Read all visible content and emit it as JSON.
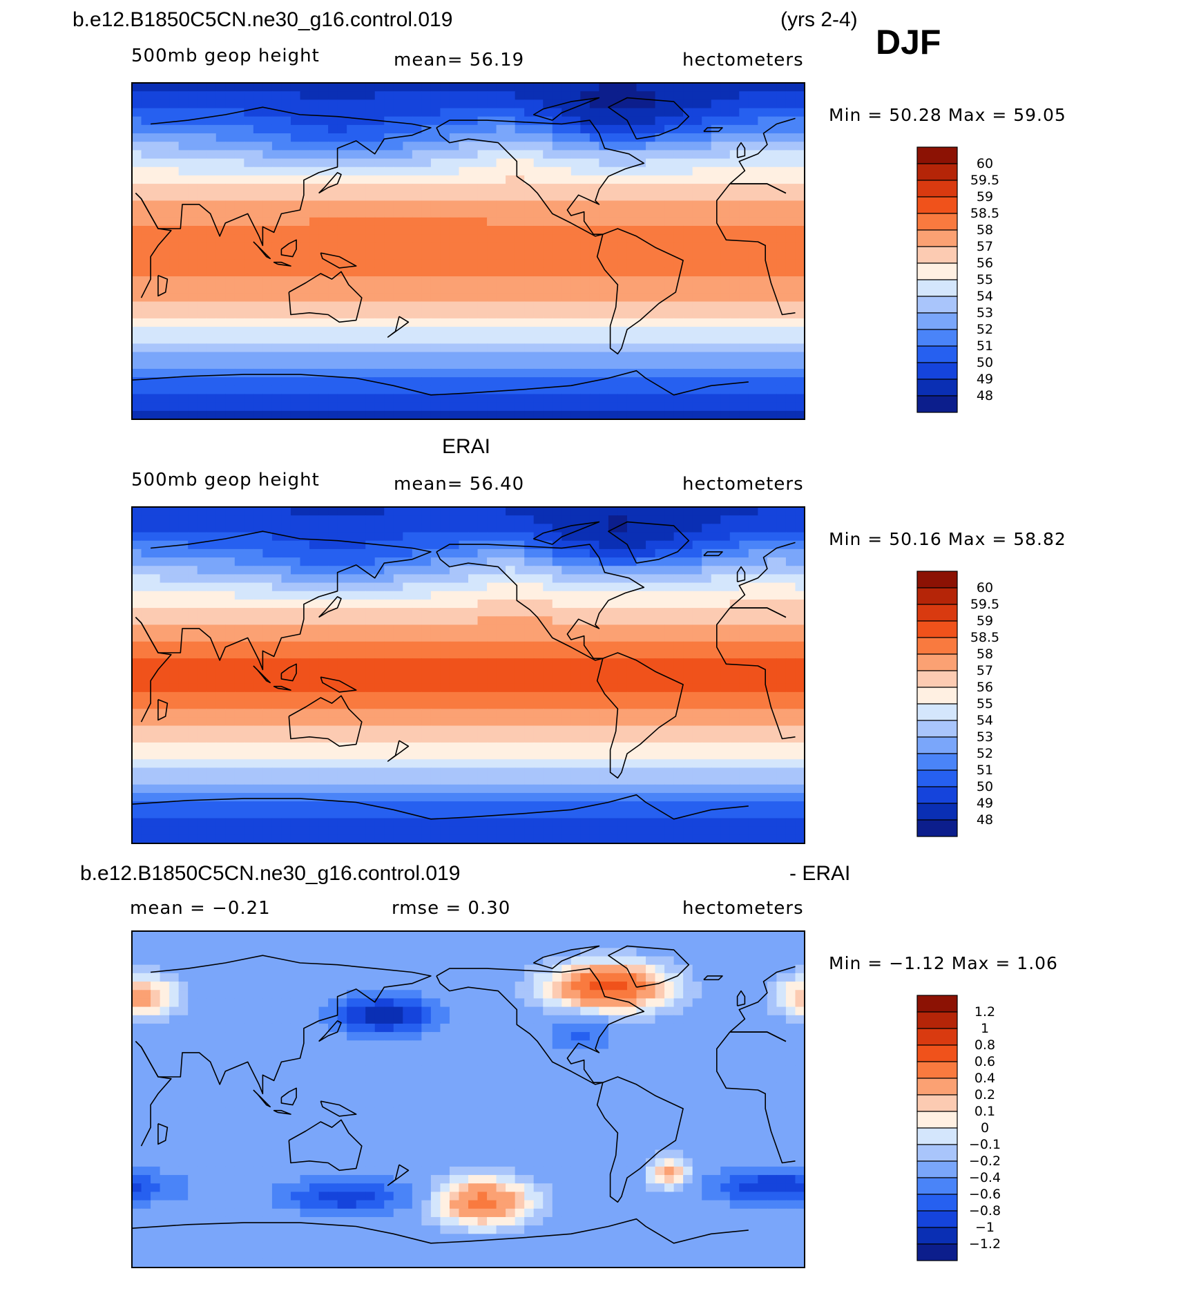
{
  "header": {
    "case_name": "b.e12.B1850C5CN.ne30_g16.control.019",
    "years": "(yrs 2-4)",
    "season": "DJF"
  },
  "colors": {
    "palette": [
      "#0c1e8c",
      "#0a2fb4",
      "#1544dc",
      "#2660f0",
      "#4a84f8",
      "#7aa6fa",
      "#a9c5fb",
      "#d4e6fc",
      "#fff0e2",
      "#fccbb2",
      "#fba173",
      "#f97a3f",
      "#f0521b",
      "#d93a10",
      "#b52508",
      "#8c1204"
    ]
  },
  "panels": [
    {
      "id": "model",
      "heading": "",
      "variable": "500mb geop height",
      "stat_text": "mean=   56.19",
      "units": "hectometers",
      "minmax_text": "Min =    50.28  Max =    59.05",
      "colorbar_labels": [
        "60",
        "59.5",
        "59",
        "58.5",
        "58",
        "57",
        "56",
        "55",
        "54",
        "53",
        "52",
        "51",
        "50",
        "49",
        "48"
      ],
      "field": "height_model"
    },
    {
      "id": "obs",
      "heading": "ERAI",
      "variable": "500mb geop height",
      "stat_text": "mean=   56.40",
      "units": "hectometers",
      "minmax_text": "Min =    50.16  Max =    58.82",
      "colorbar_labels": [
        "60",
        "59.5",
        "59",
        "58.5",
        "58",
        "57",
        "56",
        "55",
        "54",
        "53",
        "52",
        "51",
        "50",
        "49",
        "48"
      ],
      "field": "height_obs"
    },
    {
      "id": "diff",
      "heading": "b.e12.B1850C5CN.ne30_g16.control.019",
      "heading_right": "- ERAI",
      "variable": "mean =   −0.21",
      "stat_text": "rmse =    0.30",
      "units": "hectometers",
      "minmax_text": "Min =   −1.12  Max =     1.06",
      "colorbar_labels": [
        "1.2",
        "1",
        "0.8",
        "0.6",
        "0.4",
        "0.2",
        "0.1",
        "0",
        "−0.1",
        "−0.2",
        "−0.4",
        "−0.6",
        "−0.8",
        "−1",
        "−1.2"
      ],
      "field": "difference"
    }
  ]
}
